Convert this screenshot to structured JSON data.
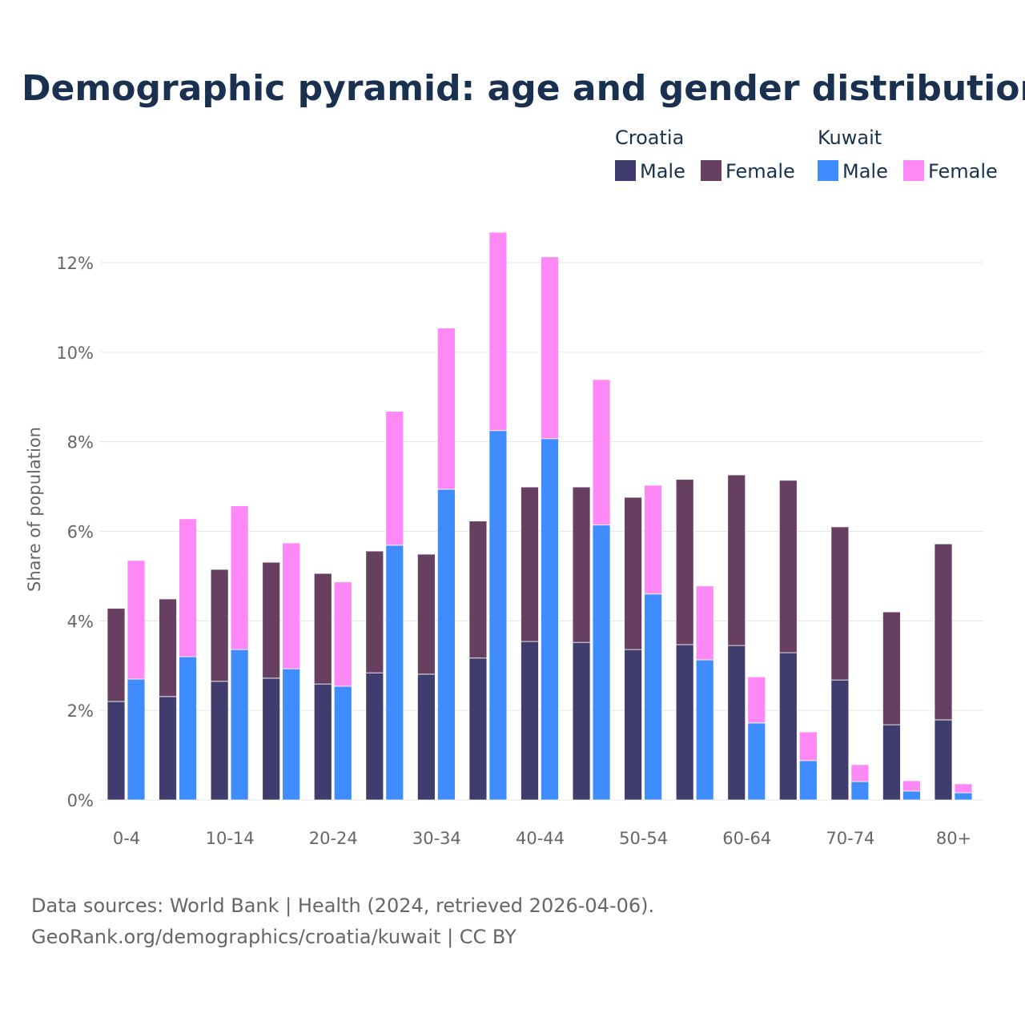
{
  "chart_data": {
    "type": "bar",
    "stacked": true,
    "title": "Demographic pyramid: age and gender distribution",
    "ylabel": "Share of population",
    "xlabel": "",
    "ylim": [
      0,
      13
    ],
    "yticks": [
      0,
      2,
      4,
      6,
      8,
      10,
      12
    ],
    "ytick_labels": [
      "0%",
      "2%",
      "4%",
      "6%",
      "8%",
      "10%",
      "12%"
    ],
    "grid": true,
    "legend_placement": "top-right",
    "categories": [
      "0-4",
      "5-9",
      "10-14",
      "15-19",
      "20-24",
      "25-29",
      "30-34",
      "35-39",
      "40-44",
      "45-49",
      "50-54",
      "55-59",
      "60-64",
      "65-69",
      "70-74",
      "75-79",
      "80+"
    ],
    "xtick_labels_shown": [
      "0-4",
      "10-14",
      "20-24",
      "30-34",
      "40-44",
      "50-54",
      "60-64",
      "70-74",
      "80+"
    ],
    "groups": [
      {
        "name": "Croatia",
        "series": [
          {
            "name": "Male",
            "color": "#403d6e",
            "values": [
              2.2,
              2.31,
              2.65,
              2.72,
              2.59,
              2.84,
              2.81,
              3.17,
              3.54,
              3.52,
              3.36,
              3.47,
              3.45,
              3.29,
              2.68,
              1.68,
              1.79
            ]
          },
          {
            "name": "Female",
            "color": "#663f61",
            "values": [
              2.08,
              2.18,
              2.5,
              2.59,
              2.47,
              2.72,
              2.68,
              3.06,
              3.45,
              3.47,
              3.4,
              3.69,
              3.81,
              3.85,
              3.42,
              2.52,
              3.93
            ]
          }
        ]
      },
      {
        "name": "Kuwait",
        "series": [
          {
            "name": "Male",
            "color": "#3f8cff",
            "values": [
              2.7,
              3.2,
              3.36,
              2.93,
              2.54,
              5.69,
              6.94,
              8.25,
              8.07,
              6.14,
              4.6,
              3.13,
              1.72,
              0.88,
              0.41,
              0.2,
              0.16
            ]
          },
          {
            "name": "Female",
            "color": "#ff88f7",
            "values": [
              2.65,
              3.08,
              3.21,
              2.81,
              2.33,
              2.99,
              3.6,
              4.43,
              4.06,
              3.25,
              2.43,
              1.65,
              1.03,
              0.64,
              0.38,
              0.23,
              0.2
            ]
          }
        ]
      }
    ],
    "source_lines": [
      "Data sources: World Bank | Health (2024, retrieved 2026-04-06).",
      "GeoRank.org/demographics/croatia/kuwait | CC BY"
    ]
  }
}
